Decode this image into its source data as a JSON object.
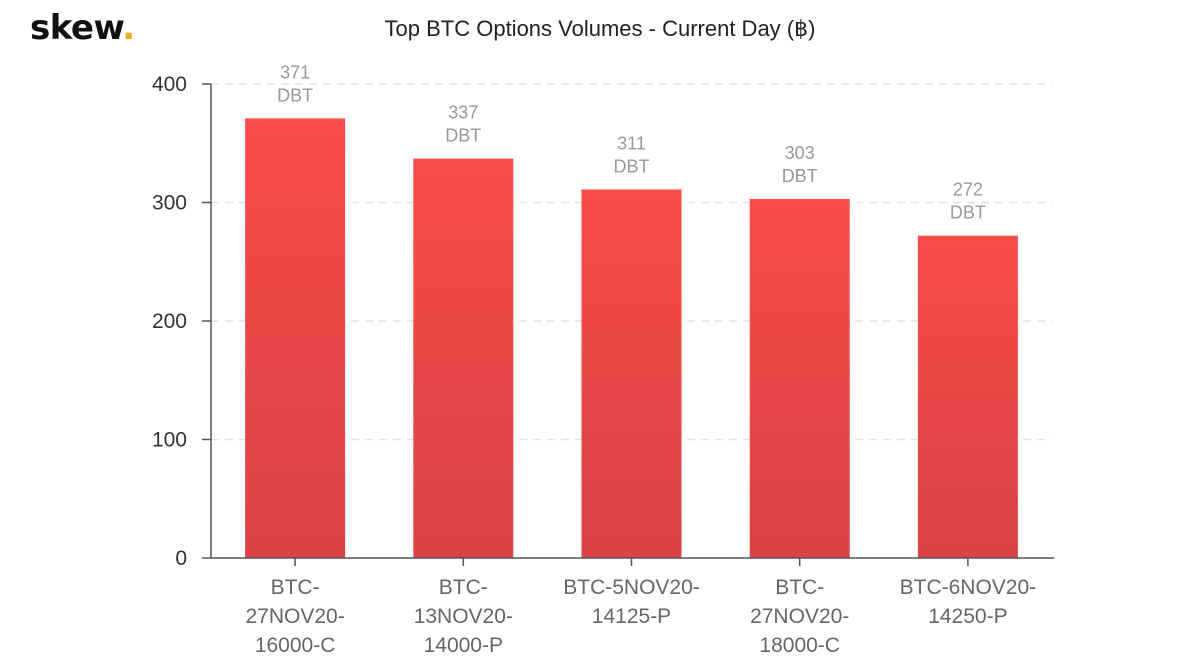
{
  "brand": {
    "name": "skew",
    "dot": "."
  },
  "colors": {
    "bar_top": "#fa4b4b",
    "bar_bottom": "#d94343",
    "axis": "#555555",
    "grid": "#e2e2e2",
    "data_label": "#999999",
    "tick_label": "#333333",
    "category_label": "#666666"
  },
  "chart_data": {
    "type": "bar",
    "title": "Top BTC Options Volumes - Current Day (฿)",
    "xlabel": "",
    "ylabel": "",
    "ylim": [
      0,
      400
    ],
    "yticks": [
      0,
      100,
      200,
      300,
      400
    ],
    "grid": true,
    "value_unit": "DBT",
    "categories": [
      [
        "BTC-",
        "27NOV20-",
        "16000-C"
      ],
      [
        "BTC-",
        "13NOV20-",
        "14000-P"
      ],
      [
        "BTC-5NOV20-",
        "14125-P"
      ],
      [
        "BTC-",
        "27NOV20-",
        "18000-C"
      ],
      [
        "BTC-6NOV20-",
        "14250-P"
      ]
    ],
    "values": [
      371,
      337,
      311,
      303,
      272
    ]
  }
}
